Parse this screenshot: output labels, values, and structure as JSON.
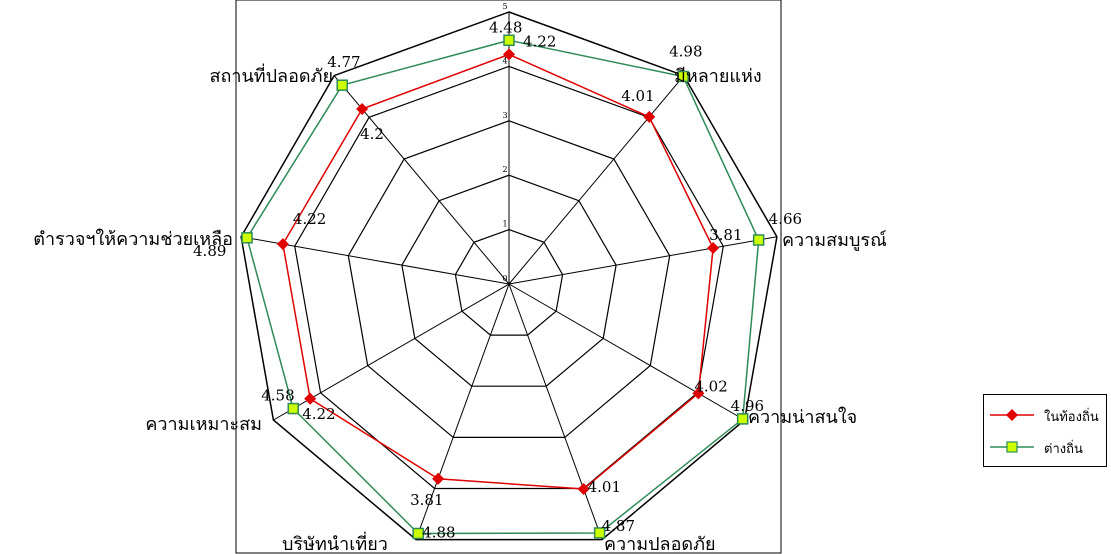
{
  "chart_data": {
    "type": "radar",
    "categories": [
      "",
      "มีหลายแห่ง",
      "ความสมบูรณ์",
      "ความน่าสนใจ",
      "ความปลอดภัย",
      "บริษัทนำเที่ยว",
      "ความเหมาะสม",
      "ตำรวจฯให้ความช่วยเหลือ",
      "สถานที่ปลอดภัย"
    ],
    "radial_ticks": [
      "0",
      "1",
      "2",
      "3",
      "4",
      "5"
    ],
    "rlim": [
      0,
      5
    ],
    "series": [
      {
        "name": "ในท้องถิ่น",
        "color": "#e00000",
        "marker": "diamond",
        "values": [
          4.22,
          4.01,
          3.81,
          4.02,
          4.01,
          3.81,
          4.22,
          4.22,
          4.2
        ]
      },
      {
        "name": "ต่างถิ่น",
        "color": "#2e8b57",
        "marker": "square",
        "marker_fill": "#ccff00",
        "values": [
          4.48,
          4.98,
          4.66,
          4.96,
          4.87,
          4.88,
          4.58,
          4.89,
          4.77
        ]
      }
    ],
    "legend": "right"
  }
}
